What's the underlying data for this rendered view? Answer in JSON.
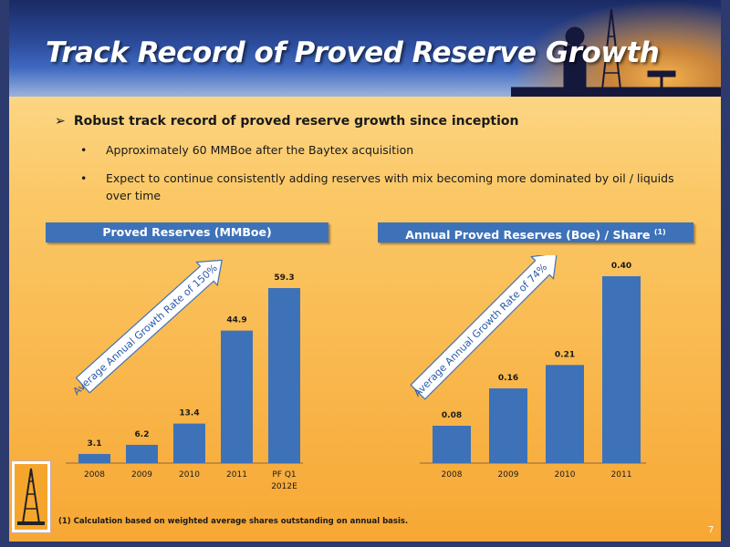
{
  "title": "Track Record of Proved Reserve Growth",
  "bullets": {
    "main": "Robust track record of proved reserve growth since inception",
    "sub": [
      "Approximately 60 MMBoe after the Baytex acquisition",
      "Expect to continue consistently adding reserves with mix becoming more dominated by oil / liquids over time"
    ]
  },
  "chart_data": [
    {
      "type": "bar",
      "title": "Proved Reserves (MMBoe)",
      "categories": [
        "2008",
        "2009",
        "2010",
        "2011",
        "PF Q1 2012E"
      ],
      "values": [
        3.1,
        6.2,
        13.4,
        44.9,
        59.3
      ],
      "value_labels": [
        "3.1",
        "6.2",
        "13.4",
        "44.9",
        "59.3"
      ],
      "annotation": "Average Annual Growth Rate of 150%",
      "bar_color": "#3e72b8"
    },
    {
      "type": "bar",
      "title": "Annual Proved Reserves (Boe) / Share",
      "title_superscript": "(1)",
      "categories": [
        "2008",
        "2009",
        "2010",
        "2011"
      ],
      "values": [
        0.08,
        0.16,
        0.21,
        0.4
      ],
      "value_labels": [
        "0.08",
        "0.16",
        "0.21",
        "0.40"
      ],
      "annotation": "Average Annual Growth Rate of 74%",
      "bar_color": "#3e72b8"
    }
  ],
  "footnote": "(1) Calculation based on weighted average shares outstanding on annual basis.",
  "page_number": "7"
}
